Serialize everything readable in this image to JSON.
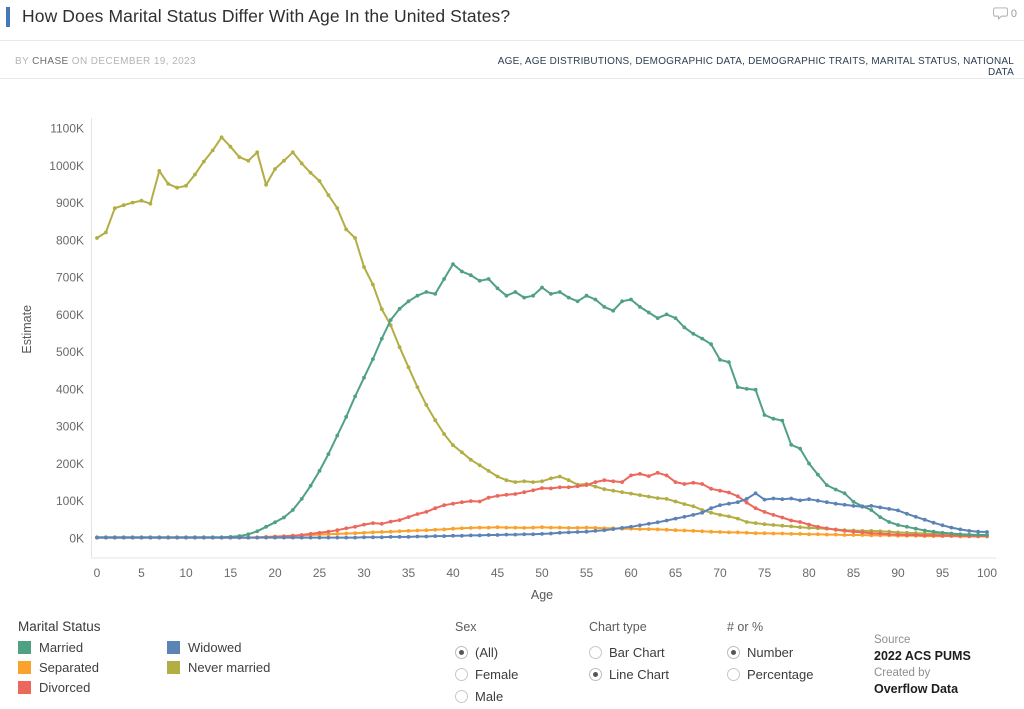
{
  "header": {
    "title": "How Does Marital Status Differ With Age In the United States?",
    "comments_count": "0"
  },
  "byline": {
    "by_label": "BY",
    "author": "CHASE",
    "date_label": "ON DECEMBER 19, 2023"
  },
  "tags": [
    "AGE",
    "AGE DISTRIBUTIONS",
    "DEMOGRAPHIC DATA",
    "DEMOGRAPHIC TRAITS",
    "MARITAL STATUS",
    "NATIONAL DATA"
  ],
  "chart_data": {
    "type": "line",
    "title": "",
    "xlabel": "Age",
    "ylabel": "Estimate",
    "units": "thousands (K)",
    "x_description": "ages 0 through 100, step 1; values arrays are indexed by age",
    "xlim": [
      0,
      100
    ],
    "ylim": [
      0,
      1100
    ],
    "grid": false,
    "markers": true,
    "legend_position": "bottom-left",
    "x_ticks": [
      0,
      5,
      10,
      15,
      20,
      25,
      30,
      35,
      40,
      45,
      50,
      55,
      60,
      65,
      70,
      75,
      80,
      85,
      90,
      95,
      100
    ],
    "y_ticks": [
      "0K",
      "100K",
      "200K",
      "300K",
      "400K",
      "500K",
      "600K",
      "700K",
      "800K",
      "900K",
      "1000K",
      "1100K"
    ],
    "series": [
      {
        "name": "Married",
        "color": "#50a183",
        "values": [
          2,
          2,
          2,
          2,
          2,
          2,
          2,
          2,
          2,
          2,
          2,
          2,
          2,
          2,
          2,
          3,
          5,
          10,
          18,
          30,
          42,
          55,
          75,
          105,
          140,
          180,
          225,
          275,
          325,
          380,
          430,
          480,
          535,
          585,
          615,
          635,
          650,
          660,
          655,
          695,
          735,
          715,
          705,
          690,
          695,
          670,
          650,
          660,
          645,
          650,
          672,
          655,
          660,
          645,
          635,
          650,
          640,
          620,
          610,
          635,
          640,
          620,
          605,
          590,
          600,
          590,
          565,
          548,
          535,
          520,
          478,
          472,
          405,
          400,
          398,
          330,
          320,
          315,
          250,
          240,
          200,
          170,
          142,
          130,
          120,
          97,
          85,
          75,
          56,
          43,
          35,
          30,
          25,
          20,
          17,
          14,
          12,
          10,
          9,
          8,
          8
        ]
      },
      {
        "name": "Separated",
        "color": "#fba22d",
        "values": [
          1,
          1,
          1,
          1,
          1,
          1,
          1,
          1,
          1,
          1,
          1,
          1,
          1,
          1,
          1,
          1,
          1,
          1,
          2,
          3,
          4,
          5,
          6,
          7,
          8,
          9,
          10,
          11,
          12,
          13,
          14,
          15,
          16,
          17,
          18,
          19,
          20,
          21,
          22,
          23,
          25,
          26,
          27,
          28,
          28,
          29,
          28,
          28,
          27,
          28,
          29,
          28,
          28,
          27,
          27,
          28,
          27,
          26,
          26,
          25,
          25,
          24,
          24,
          23,
          22,
          21,
          20,
          19,
          18,
          17,
          16,
          15,
          15,
          14,
          13,
          13,
          12,
          12,
          11,
          11,
          10,
          10,
          9,
          9,
          8,
          8,
          8,
          7,
          7,
          7,
          6,
          6,
          6,
          5,
          5,
          5,
          5,
          4,
          4,
          4,
          4
        ]
      },
      {
        "name": "Divorced",
        "color": "#ec685c",
        "values": [
          1,
          1,
          1,
          1,
          1,
          1,
          1,
          1,
          1,
          1,
          1,
          1,
          1,
          1,
          1,
          1,
          1,
          1,
          1,
          2,
          3,
          4,
          6,
          8,
          11,
          14,
          17,
          21,
          26,
          30,
          36,
          40,
          38,
          44,
          48,
          56,
          64,
          70,
          80,
          88,
          92,
          96,
          99,
          98,
          108,
          113,
          116,
          118,
          123,
          128,
          134,
          133,
          136,
          136,
          139,
          142,
          150,
          155,
          152,
          150,
          168,
          172,
          166,
          175,
          168,
          150,
          145,
          148,
          145,
          132,
          127,
          122,
          112,
          95,
          80,
          70,
          62,
          55,
          47,
          43,
          36,
          30,
          26,
          22,
          19,
          17,
          15,
          13,
          12,
          10,
          9,
          8,
          8,
          7,
          7,
          6,
          6,
          6,
          5,
          5,
          5
        ]
      },
      {
        "name": "Widowed",
        "color": "#5c83b5",
        "values": [
          1,
          1,
          1,
          1,
          1,
          1,
          1,
          1,
          1,
          1,
          1,
          1,
          1,
          1,
          1,
          1,
          1,
          1,
          1,
          1,
          1,
          1,
          1,
          1,
          1,
          1,
          1,
          1,
          1,
          1,
          2,
          2,
          2,
          3,
          3,
          3,
          4,
          4,
          5,
          5,
          6,
          6,
          7,
          7,
          8,
          8,
          9,
          9,
          10,
          10,
          11,
          12,
          14,
          15,
          16,
          17,
          19,
          21,
          24,
          27,
          30,
          34,
          38,
          42,
          47,
          52,
          57,
          62,
          68,
          80,
          88,
          92,
          96,
          105,
          120,
          103,
          106,
          104,
          106,
          101,
          104,
          100,
          96,
          92,
          89,
          86,
          84,
          86,
          82,
          78,
          74,
          65,
          57,
          49,
          41,
          34,
          28,
          23,
          19,
          17,
          16
        ]
      },
      {
        "name": "Never married",
        "color": "#b2ae44",
        "values": [
          805,
          820,
          885,
          893,
          900,
          905,
          897,
          985,
          950,
          940,
          945,
          975,
          1010,
          1040,
          1075,
          1050,
          1022,
          1012,
          1035,
          948,
          990,
          1012,
          1035,
          1005,
          980,
          958,
          920,
          885,
          828,
          805,
          727,
          680,
          614,
          571,
          512,
          458,
          405,
          357,
          316,
          279,
          249,
          230,
          210,
          195,
          180,
          165,
          155,
          150,
          152,
          150,
          152,
          160,
          165,
          155,
          143,
          145,
          138,
          131,
          127,
          123,
          119,
          115,
          111,
          107,
          105,
          98,
          91,
          85,
          75,
          68,
          62,
          58,
          52,
          43,
          40,
          37,
          35,
          33,
          31,
          29,
          27,
          26,
          25,
          23,
          21,
          20,
          19,
          19,
          18,
          17,
          15,
          14,
          13,
          12,
          11,
          10,
          9,
          9,
          8,
          8,
          8
        ]
      }
    ]
  },
  "legend": {
    "title": "Marital Status"
  },
  "controls": {
    "sex": {
      "label": "Sex",
      "options": [
        {
          "label": "(All)",
          "selected": true
        },
        {
          "label": "Female",
          "selected": false
        },
        {
          "label": "Male",
          "selected": false
        }
      ]
    },
    "chart_type": {
      "label": "Chart type",
      "options": [
        {
          "label": "Bar Chart",
          "selected": false
        },
        {
          "label": "Line Chart",
          "selected": true
        }
      ]
    },
    "number_or_percent": {
      "label": "# or %",
      "options": [
        {
          "label": "Number",
          "selected": true
        },
        {
          "label": "Percentage",
          "selected": false
        }
      ]
    }
  },
  "source": {
    "source_label": "Source",
    "source_value": "2022 ACS PUMS",
    "created_by_label": "Created by",
    "created_by_value": "Overflow Data"
  }
}
